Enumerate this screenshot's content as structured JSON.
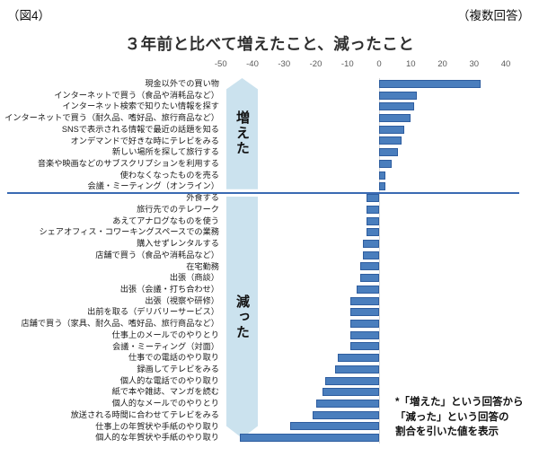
{
  "header": {
    "fig_label": "（図4）",
    "note_right": "（複数回答）"
  },
  "title": "３年前と比べて増えたこと、減ったこと",
  "arrows": {
    "increase_label": "増えた",
    "decrease_label": "減った"
  },
  "annotation": {
    "lines": [
      "*「増えた」という回答から",
      "「減った」という回答の",
      "割合を引いた値を表示"
    ]
  },
  "chart_data": {
    "type": "bar",
    "orientation": "horizontal",
    "title": "３年前と比べて増えたこと、減ったこと",
    "xlabel": "",
    "ylabel": "",
    "xlim": [
      -50,
      40
    ],
    "x_ticks": [
      -50,
      -40,
      -30,
      -20,
      -10,
      0,
      10,
      20,
      30,
      40
    ],
    "grid": false,
    "legend": "none",
    "note": "*「増えた」という回答から「減った」という回答の割合を引いた値を表示",
    "divider_after_index": 9,
    "categories": [
      "現金以外での買い物",
      "インターネットで買う（食品や消耗品など）",
      "インターネット検索で知りたい情報を探す",
      "インターネットで買う（耐久品、嗜好品、旅行商品など）",
      "SNSで表示される情報で最近の話題を知る",
      "オンデマンドで好きな時にテレビをみる",
      "新しい場所を探して旅行する",
      "音楽や映画などのサブスクリプションを利用する",
      "使わなくなったものを売る",
      "会議・ミーティング（オンライン）",
      "外食する",
      "旅行先でのテレワーク",
      "あえてアナログなものを使う",
      "シェアオフィス・コワーキングスペースでの業務",
      "購入せずレンタルする",
      "店舗で買う（食品や消耗品など）",
      "在宅勤務",
      "出張（商談）",
      "出張（会議・打ち合わせ）",
      "出張（視察や研修）",
      "出前を取る（デリバリーサービス）",
      "店舗で買う（家具、耐久品、嗜好品、旅行商品など）",
      "仕事上のメールでのやりとり",
      "会議・ミーティング（対面）",
      "仕事での電話のやり取り",
      "録画してテレビをみる",
      "個人的な電話でのやり取り",
      "紙で本や雑誌、マンガを読む",
      "個人的なメールでのやりとり",
      "放送される時間に合わせてテレビをみる",
      "仕事上の年賀状や手紙のやり取り",
      "個人的な年賀状や手紙のやり取り"
    ],
    "values": [
      32,
      12,
      11,
      10,
      8,
      7,
      6,
      4,
      2,
      2,
      -4,
      -4,
      -4,
      -4,
      -5,
      -5,
      -6,
      -6,
      -7,
      -9,
      -9,
      -9,
      -9,
      -9,
      -13,
      -14,
      -17,
      -18,
      -20,
      -21,
      -28,
      -44
    ]
  },
  "colors": {
    "bar_fill": "#4a7ebd",
    "bar_border": "#2e5d9f",
    "arrow_fill": "#cbe2ee",
    "divider": "#3a6ab3",
    "axis_text": "#595959",
    "zero_line": "#d9d9d9"
  }
}
